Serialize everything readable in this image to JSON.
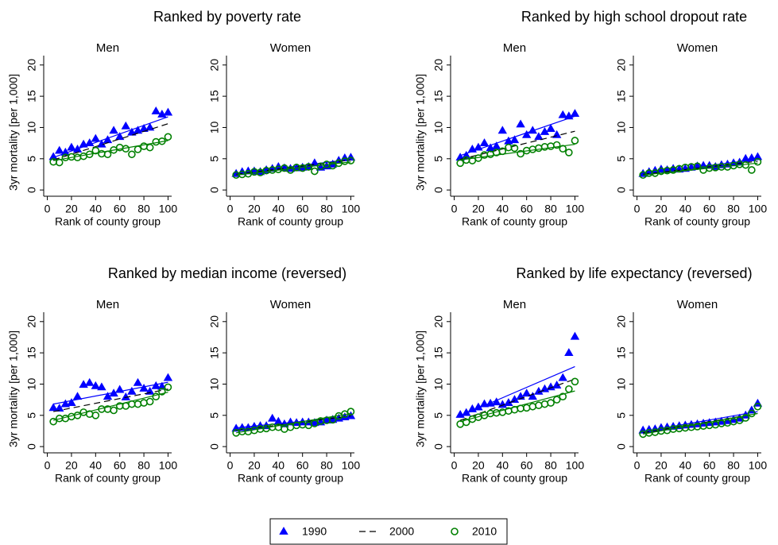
{
  "legend": [
    {
      "name": "1990",
      "color": "#0000ff",
      "marker": "triangle"
    },
    {
      "name": "2000",
      "color": "#000000",
      "dash": true
    },
    {
      "name": "2010",
      "color": "#008000",
      "marker": "circle"
    }
  ],
  "chart_data": [
    {
      "type": "scatter",
      "group_title": "Ranked by poverty rate",
      "title": "Men",
      "ylabel": "3yr mortality [per 1,000]",
      "xlabel": "Rank of county group",
      "x": [
        5,
        10,
        15,
        20,
        25,
        30,
        35,
        40,
        45,
        50,
        55,
        60,
        65,
        70,
        75,
        80,
        85,
        90,
        95,
        100
      ],
      "xlim": [
        -3,
        103
      ],
      "ylim": [
        -1,
        21.5
      ],
      "xticks": [
        0,
        20,
        40,
        60,
        80,
        100
      ],
      "yticks": [
        0,
        5,
        10,
        15,
        20
      ],
      "fit_x": [
        5,
        100
      ],
      "series": [
        {
          "values": [
            5.3,
            6.3,
            6.0,
            6.8,
            6.5,
            7.3,
            7.5,
            8.2,
            7.3,
            8.0,
            9.5,
            8.5,
            10.2,
            9.2,
            9.5,
            9.8,
            10.0,
            12.6,
            12.1,
            12.4
          ],
          "fit": [
            5.2,
            11.7
          ]
        },
        {
          "fit": [
            4.8,
            10.6
          ]
        },
        {
          "values": [
            4.5,
            4.4,
            5.2,
            5.3,
            5.2,
            5.4,
            5.7,
            6.3,
            5.8,
            5.7,
            6.4,
            6.8,
            6.6,
            5.7,
            6.5,
            7.0,
            6.8,
            7.7,
            7.8,
            8.5
          ],
          "fit": [
            4.7,
            7.9
          ]
        }
      ]
    },
    {
      "type": "scatter",
      "title": "Women",
      "xlabel": "Rank of county group",
      "x": [
        5,
        10,
        15,
        20,
        25,
        30,
        35,
        40,
        45,
        50,
        55,
        60,
        65,
        70,
        75,
        80,
        85,
        90,
        95,
        100
      ],
      "xlim": [
        -3,
        103
      ],
      "ylim": [
        -1,
        21.5
      ],
      "xticks": [
        0,
        20,
        40,
        60,
        80,
        100
      ],
      "yticks": [
        0,
        5,
        10,
        15,
        20
      ],
      "fit_x": [
        5,
        100
      ],
      "series": [
        {
          "values": [
            2.6,
            2.9,
            3.0,
            3.0,
            2.9,
            3.2,
            3.4,
            3.7,
            3.5,
            3.4,
            3.5,
            3.6,
            3.7,
            4.3,
            3.6,
            3.8,
            4.1,
            4.7,
            5.1,
            5.2
          ],
          "fit": [
            2.6,
            4.9
          ]
        },
        {
          "fit": [
            2.5,
            4.8
          ]
        },
        {
          "values": [
            2.4,
            2.5,
            2.6,
            2.9,
            2.8,
            3.1,
            3.2,
            3.3,
            3.5,
            3.2,
            3.6,
            3.5,
            3.7,
            3.0,
            3.8,
            4.1,
            3.9,
            4.3,
            4.6,
            4.7
          ],
          "fit": [
            2.4,
            4.5
          ]
        }
      ]
    },
    {
      "type": "scatter",
      "group_title": "Ranked by high school dropout rate",
      "title": "Men",
      "ylabel": "3yr mortality [per 1,000]",
      "xlabel": "Rank of county group",
      "x": [
        5,
        10,
        15,
        20,
        25,
        30,
        35,
        40,
        45,
        50,
        55,
        60,
        65,
        70,
        75,
        80,
        85,
        90,
        95,
        100
      ],
      "xlim": [
        -3,
        103
      ],
      "ylim": [
        -1,
        21.5
      ],
      "xticks": [
        0,
        20,
        40,
        60,
        80,
        100
      ],
      "yticks": [
        0,
        5,
        10,
        15,
        20
      ],
      "fit_x": [
        5,
        100
      ],
      "series": [
        {
          "values": [
            5.2,
            5.5,
            6.5,
            6.8,
            7.5,
            6.7,
            7.0,
            9.5,
            7.8,
            8.0,
            10.5,
            8.8,
            9.5,
            8.5,
            9.3,
            9.8,
            8.8,
            12.0,
            11.8,
            12.2
          ],
          "fit": [
            5.5,
            11.8
          ]
        },
        {
          "fit": [
            4.9,
            9.4
          ]
        },
        {
          "values": [
            4.3,
            4.8,
            4.7,
            5.1,
            5.6,
            5.7,
            6.0,
            6.2,
            6.8,
            6.7,
            5.8,
            6.3,
            6.5,
            6.7,
            6.9,
            7.0,
            7.2,
            6.6,
            6.0,
            7.9
          ],
          "fit": [
            4.8,
            7.3
          ]
        }
      ]
    },
    {
      "type": "scatter",
      "title": "Women",
      "xlabel": "Rank of county group",
      "x": [
        5,
        10,
        15,
        20,
        25,
        30,
        35,
        40,
        45,
        50,
        55,
        60,
        65,
        70,
        75,
        80,
        85,
        90,
        95,
        100
      ],
      "xlim": [
        -3,
        103
      ],
      "ylim": [
        -1,
        21.5
      ],
      "xticks": [
        0,
        20,
        40,
        60,
        80,
        100
      ],
      "yticks": [
        0,
        5,
        10,
        15,
        20
      ],
      "fit_x": [
        5,
        100
      ],
      "series": [
        {
          "values": [
            2.6,
            2.9,
            3.1,
            3.3,
            3.2,
            3.4,
            3.3,
            3.4,
            3.6,
            3.8,
            3.9,
            3.9,
            3.7,
            4.0,
            4.1,
            4.3,
            4.4,
            5.0,
            5.1,
            5.3
          ],
          "fit": [
            2.6,
            4.9
          ]
        },
        {
          "fit": [
            2.5,
            4.6
          ]
        },
        {
          "values": [
            2.4,
            2.7,
            2.7,
            3.0,
            3.1,
            3.2,
            3.4,
            3.6,
            3.7,
            3.8,
            3.2,
            3.5,
            3.6,
            3.7,
            3.7,
            3.9,
            4.1,
            4.0,
            3.2,
            4.5
          ],
          "fit": [
            2.4,
            4.3
          ]
        }
      ]
    },
    {
      "type": "scatter",
      "group_title": "Ranked by median income (reversed)",
      "title": "Men",
      "ylabel": "3yr mortality [per 1,000]",
      "xlabel": "Rank of county group",
      "x": [
        5,
        10,
        15,
        20,
        25,
        30,
        35,
        40,
        45,
        50,
        55,
        60,
        65,
        70,
        75,
        80,
        85,
        90,
        95,
        100
      ],
      "xlim": [
        -3,
        103
      ],
      "ylim": [
        -1,
        21.5
      ],
      "xticks": [
        0,
        20,
        40,
        60,
        80,
        100
      ],
      "yticks": [
        0,
        5,
        10,
        15,
        20
      ],
      "fit_x": [
        5,
        100
      ],
      "series": [
        {
          "values": [
            6.2,
            6.1,
            6.8,
            7.0,
            8.0,
            9.9,
            10.2,
            9.7,
            9.5,
            8.0,
            8.5,
            9.1,
            7.9,
            8.8,
            10.2,
            9.3,
            8.8,
            9.7,
            9.6,
            11.0
          ],
          "fit": [
            6.8,
            10.3
          ]
        },
        {
          "fit": [
            5.6,
            9.2
          ]
        },
        {
          "values": [
            4.0,
            4.5,
            4.5,
            4.8,
            5.0,
            5.5,
            5.2,
            5.0,
            6.0,
            6.0,
            5.8,
            6.5,
            6.5,
            6.8,
            6.8,
            7.0,
            7.2,
            8.0,
            8.8,
            9.5
          ],
          "fit": [
            4.2,
            8.7
          ]
        }
      ]
    },
    {
      "type": "scatter",
      "title": "Women",
      "xlabel": "Rank of county group",
      "x": [
        5,
        10,
        15,
        20,
        25,
        30,
        35,
        40,
        45,
        50,
        55,
        60,
        65,
        70,
        75,
        80,
        85,
        90,
        95,
        100
      ],
      "xlim": [
        -3,
        103
      ],
      "ylim": [
        -1,
        21.5
      ],
      "xticks": [
        0,
        20,
        40,
        60,
        80,
        100
      ],
      "yticks": [
        0,
        5,
        10,
        15,
        20
      ],
      "fit_x": [
        5,
        100
      ],
      "series": [
        {
          "values": [
            2.9,
            3.0,
            3.0,
            3.2,
            3.3,
            3.3,
            4.5,
            4.0,
            3.6,
            3.9,
            3.8,
            3.9,
            3.9,
            3.8,
            3.9,
            4.2,
            4.3,
            4.5,
            4.7,
            4.9
          ],
          "fit": [
            3.0,
            4.8
          ]
        },
        {
          "fit": [
            2.6,
            4.9
          ]
        },
        {
          "values": [
            2.2,
            2.4,
            2.4,
            2.6,
            2.8,
            2.9,
            3.1,
            3.1,
            2.8,
            3.1,
            3.4,
            3.5,
            3.4,
            3.7,
            4.1,
            4.2,
            4.3,
            4.9,
            5.2,
            5.6
          ],
          "fit": [
            2.2,
            5.3
          ]
        }
      ]
    },
    {
      "type": "scatter",
      "group_title": "Ranked by life expectancy (reversed)",
      "title": "Men",
      "ylabel": "3yr mortality [per 1,000]",
      "xlabel": "Rank of county group",
      "x": [
        5,
        10,
        15,
        20,
        25,
        30,
        35,
        40,
        45,
        50,
        55,
        60,
        65,
        70,
        75,
        80,
        85,
        90,
        95,
        100
      ],
      "xlim": [
        -3,
        103
      ],
      "ylim": [
        -1,
        21.5
      ],
      "xticks": [
        0,
        20,
        40,
        60,
        80,
        100
      ],
      "yticks": [
        0,
        5,
        10,
        15,
        20
      ],
      "fit_x": [
        5,
        100
      ],
      "series": [
        {
          "values": [
            5.1,
            5.4,
            6.0,
            6.3,
            6.8,
            6.9,
            7.1,
            6.7,
            7.0,
            7.5,
            8.0,
            8.5,
            8.0,
            8.8,
            9.2,
            9.5,
            9.8,
            11.0,
            15.0,
            17.6
          ],
          "fit": [
            4.9,
            12.8
          ]
        },
        {
          "fit": [
            4.2,
            10.8
          ]
        },
        {
          "values": [
            3.6,
            3.9,
            4.4,
            4.7,
            5.0,
            5.3,
            5.4,
            5.5,
            5.7,
            5.9,
            6.1,
            6.2,
            6.4,
            6.6,
            6.8,
            7.0,
            7.5,
            8.0,
            9.2,
            10.4
          ],
          "fit": [
            4.0,
            8.9
          ]
        }
      ]
    },
    {
      "type": "scatter",
      "title": "Women",
      "xlabel": "Rank of county group",
      "x": [
        5,
        10,
        15,
        20,
        25,
        30,
        35,
        40,
        45,
        50,
        55,
        60,
        65,
        70,
        75,
        80,
        85,
        90,
        95,
        100
      ],
      "xlim": [
        -3,
        103
      ],
      "ylim": [
        -1,
        21.5
      ],
      "xticks": [
        0,
        20,
        40,
        60,
        80,
        100
      ],
      "yticks": [
        0,
        5,
        10,
        15,
        20
      ],
      "fit_x": [
        5,
        100
      ],
      "series": [
        {
          "values": [
            2.6,
            2.7,
            2.8,
            3.0,
            3.1,
            3.2,
            3.3,
            3.4,
            3.5,
            3.6,
            3.7,
            3.8,
            3.9,
            4.0,
            4.1,
            4.3,
            4.5,
            5.0,
            5.8,
            6.9
          ],
          "fit": [
            2.4,
            5.6
          ]
        },
        {
          "fit": [
            2.2,
            5.3
          ]
        },
        {
          "values": [
            2.0,
            2.2,
            2.3,
            2.5,
            2.6,
            2.8,
            2.9,
            3.0,
            3.1,
            3.2,
            3.3,
            3.4,
            3.5,
            3.7,
            3.8,
            4.0,
            4.2,
            4.6,
            5.3,
            6.4
          ],
          "fit": [
            2.0,
            5.3
          ]
        }
      ]
    }
  ]
}
